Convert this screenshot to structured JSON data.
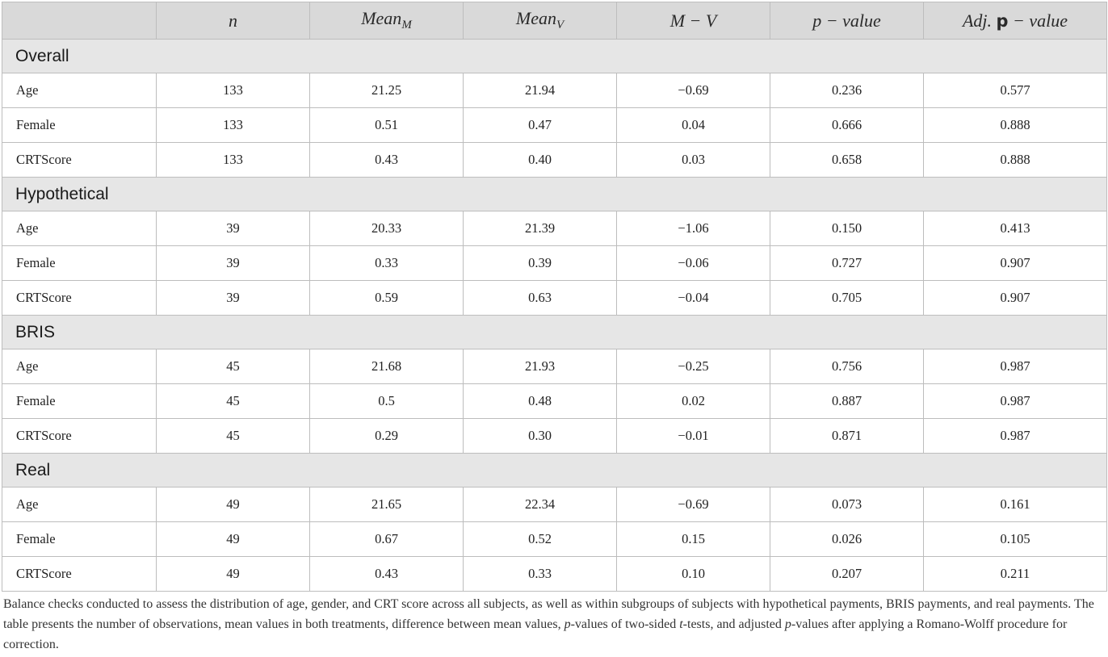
{
  "table": {
    "headers": {
      "corner": "",
      "n": "n",
      "mean_m_base": "Mean",
      "mean_m_sub": "M",
      "mean_v_base": "Mean",
      "mean_v_sub": "V",
      "diff": "M − V",
      "p_value": "p − value",
      "adj_prefix": "Adj. ",
      "adj_p": "p",
      "adj_suffix": " − value"
    },
    "groups": [
      {
        "title": "Overall",
        "rows": [
          {
            "label": "Age",
            "n": "133",
            "mean_m": "21.25",
            "mean_v": "21.94",
            "diff": "−0.69",
            "p": "0.236",
            "adj_p": "0.577"
          },
          {
            "label": "Female",
            "n": "133",
            "mean_m": "0.51",
            "mean_v": "0.47",
            "diff": "0.04",
            "p": "0.666",
            "adj_p": "0.888"
          },
          {
            "label": "CRTScore",
            "n": "133",
            "mean_m": "0.43",
            "mean_v": "0.40",
            "diff": "0.03",
            "p": "0.658",
            "adj_p": "0.888"
          }
        ]
      },
      {
        "title": "Hypothetical",
        "rows": [
          {
            "label": "Age",
            "n": "39",
            "mean_m": "20.33",
            "mean_v": "21.39",
            "diff": "−1.06",
            "p": "0.150",
            "adj_p": "0.413"
          },
          {
            "label": "Female",
            "n": "39",
            "mean_m": "0.33",
            "mean_v": "0.39",
            "diff": "−0.06",
            "p": "0.727",
            "adj_p": "0.907"
          },
          {
            "label": "CRTScore",
            "n": "39",
            "mean_m": "0.59",
            "mean_v": "0.63",
            "diff": "−0.04",
            "p": "0.705",
            "adj_p": "0.907"
          }
        ]
      },
      {
        "title": "BRIS",
        "rows": [
          {
            "label": "Age",
            "n": "45",
            "mean_m": "21.68",
            "mean_v": "21.93",
            "diff": "−0.25",
            "p": "0.756",
            "adj_p": "0.987"
          },
          {
            "label": "Female",
            "n": "45",
            "mean_m": "0.5",
            "mean_v": "0.48",
            "diff": "0.02",
            "p": "0.887",
            "adj_p": "0.987"
          },
          {
            "label": "CRTScore",
            "n": "45",
            "mean_m": "0.29",
            "mean_v": "0.30",
            "diff": "−0.01",
            "p": "0.871",
            "adj_p": "0.987"
          }
        ]
      },
      {
        "title": "Real",
        "rows": [
          {
            "label": "Age",
            "n": "49",
            "mean_m": "21.65",
            "mean_v": "22.34",
            "diff": "−0.69",
            "p": "0.073",
            "adj_p": "0.161"
          },
          {
            "label": "Female",
            "n": "49",
            "mean_m": "0.67",
            "mean_v": "0.52",
            "diff": "0.15",
            "p": "0.026",
            "adj_p": "0.105"
          },
          {
            "label": "CRTScore",
            "n": "49",
            "mean_m": "0.43",
            "mean_v": "0.33",
            "diff": "0.10",
            "p": "0.207",
            "adj_p": "0.211"
          }
        ]
      }
    ]
  },
  "footnote": {
    "part1": "Balance checks conducted to assess the distribution of age, gender, and CRT score across all subjects, as well as within subgroups of subjects with hypothetical payments, BRIS payments, and real payments. The table presents the number of observations, mean values in both treatments, difference between mean values, ",
    "p1": "p",
    "part2": "-values of two-sided ",
    "t": "t",
    "part3": "-tests, and adjusted ",
    "p2": "p",
    "part4": "-values after applying a Romano-Wolff procedure for correction."
  }
}
